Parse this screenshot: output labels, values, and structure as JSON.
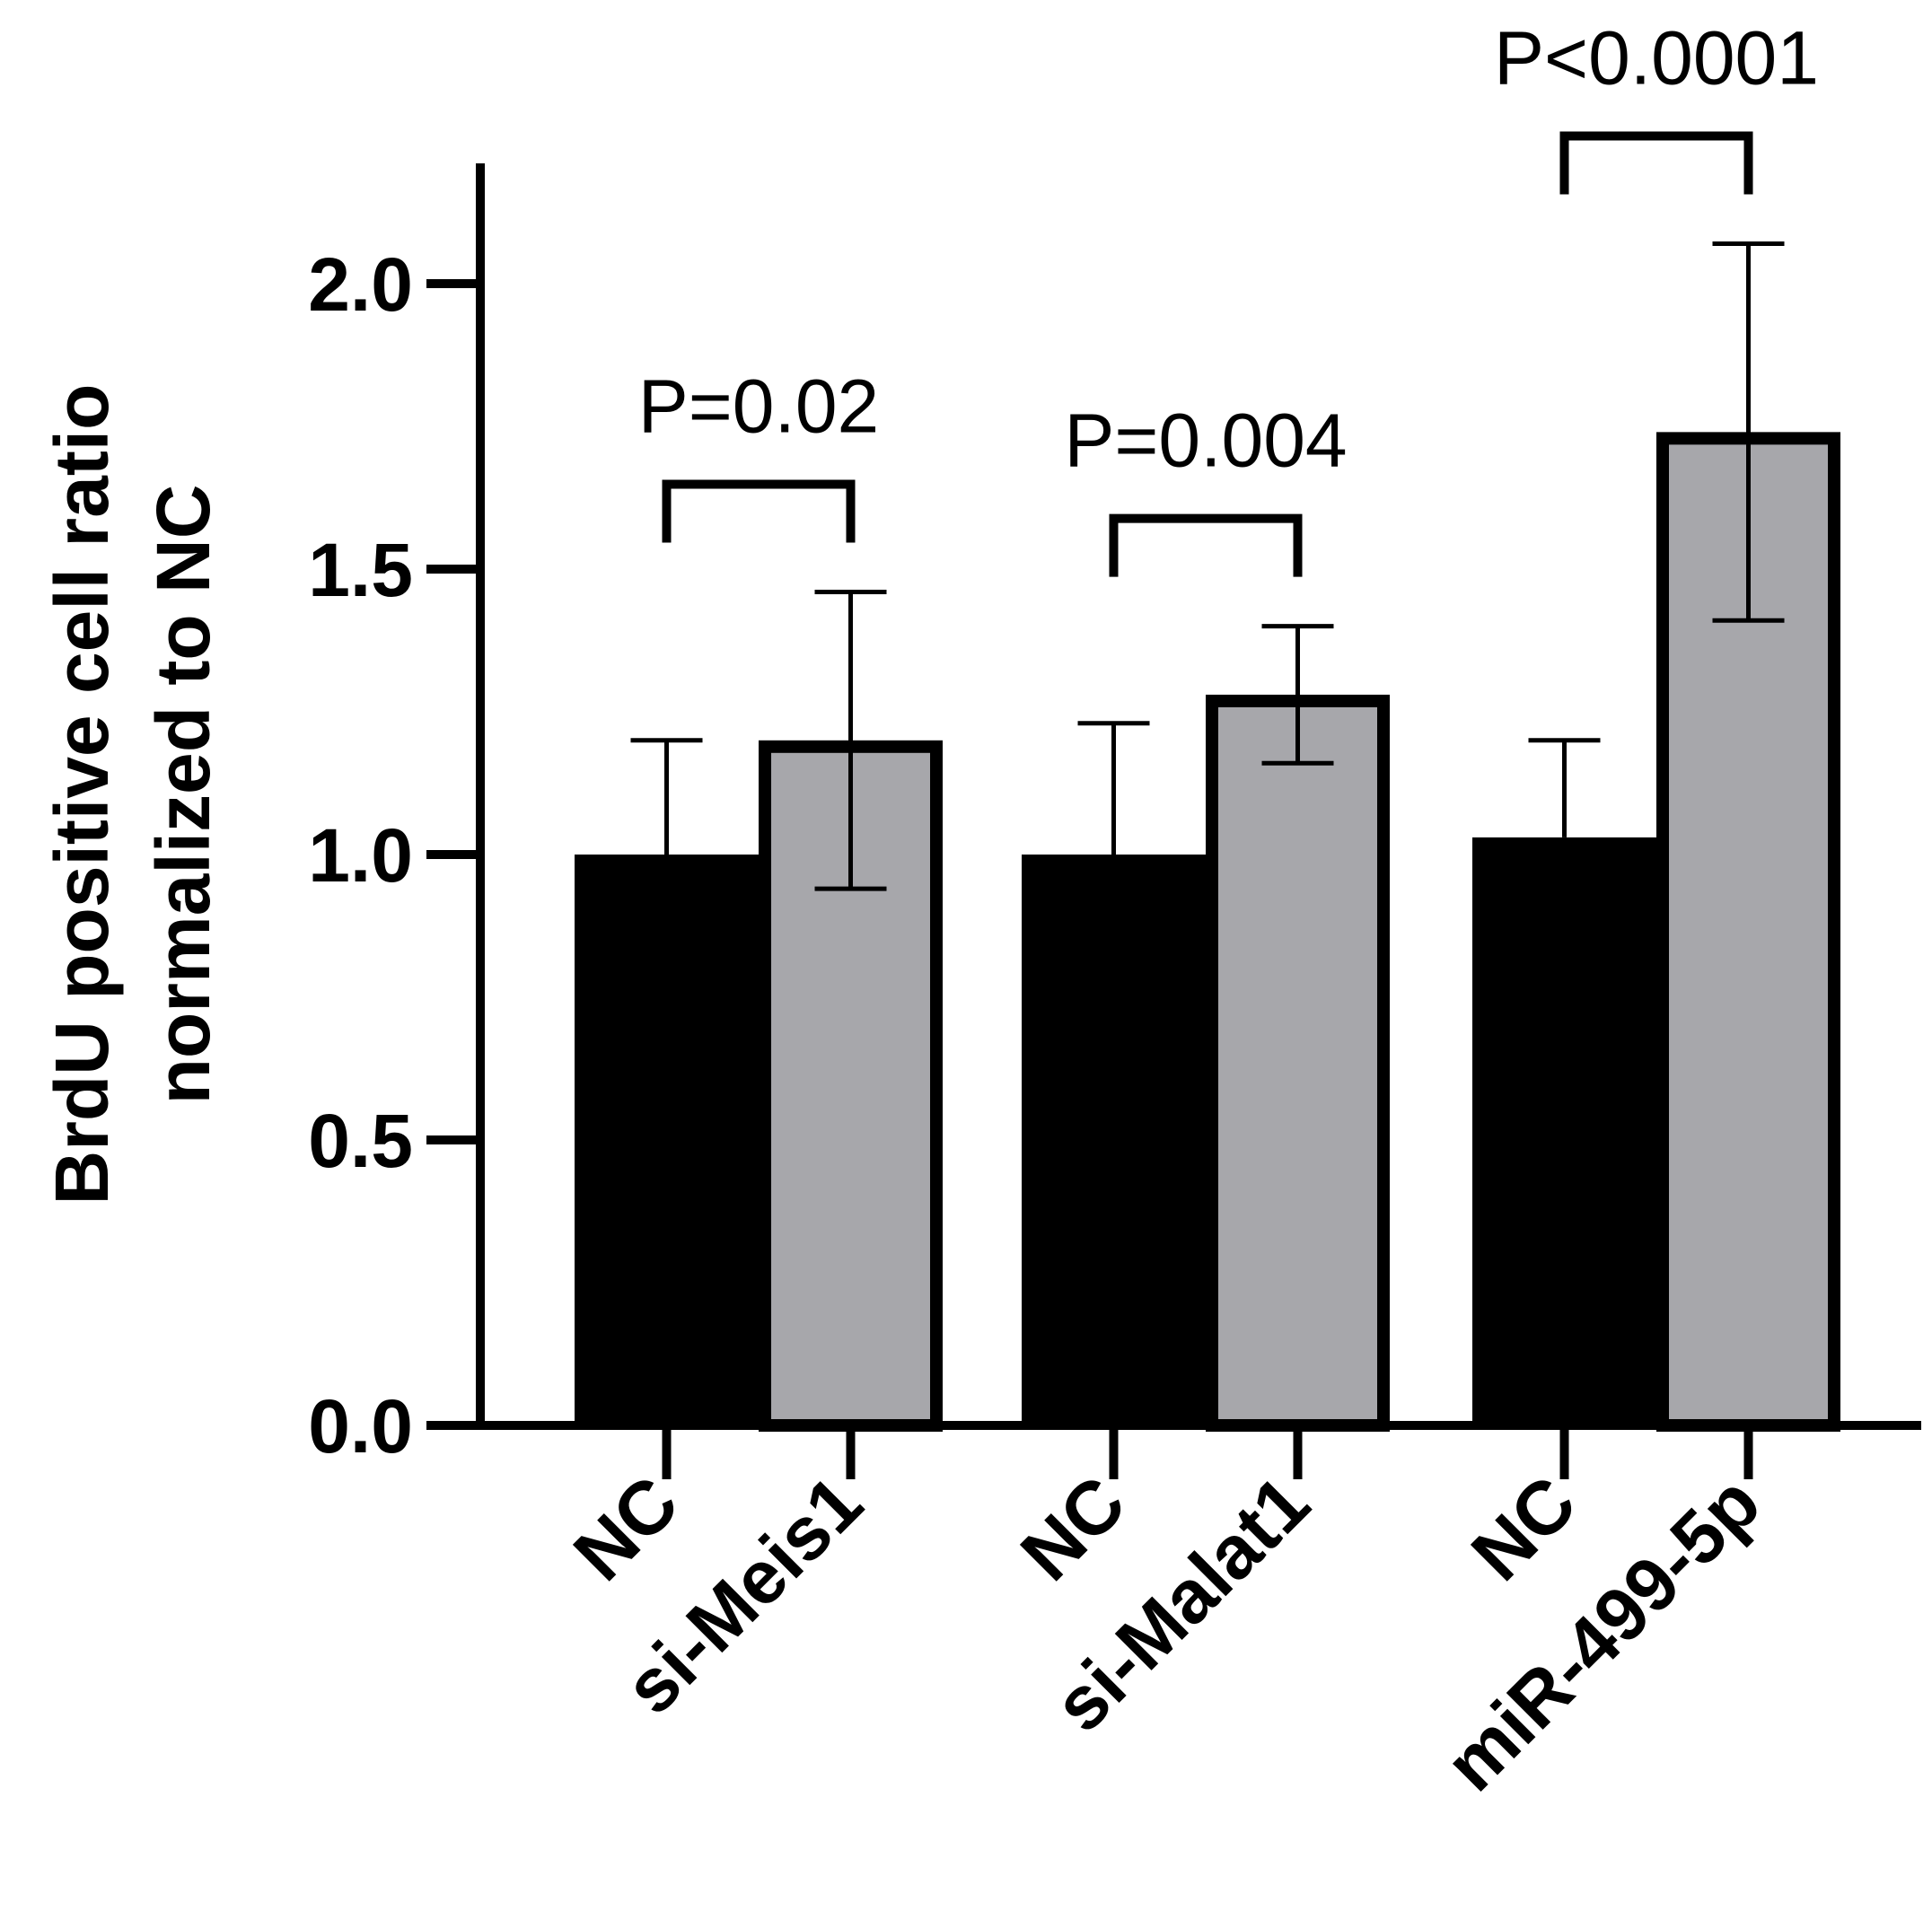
{
  "chart_data": {
    "type": "bar",
    "title": "",
    "ylabel_lines": [
      "BrdU positive cell ratio",
      "normalized to NC"
    ],
    "xlabel": "",
    "ylim": [
      0,
      2.0
    ],
    "yticks": [
      "0.0",
      "0.5",
      "1.0",
      "1.5",
      "2.0"
    ],
    "ytick_values": [
      0,
      0.5,
      1.0,
      1.5,
      2.0
    ],
    "grid": false,
    "legend": "none",
    "categories": [
      "NC",
      "si-Meis1",
      "NC",
      "si-Malat1",
      "NC",
      "miR-499-5p"
    ],
    "values": [
      1.0,
      1.2,
      1.0,
      1.28,
      1.03,
      1.74
    ],
    "errors": [
      0.2,
      0.26,
      0.23,
      0.12,
      0.17,
      0.33
    ],
    "error_style": "upper-only on black bars, both directions on gray bars",
    "bar_colors": [
      "#000000",
      "#a7a7ab",
      "#000000",
      "#a7a7ab",
      "#000000",
      "#a7a7ab"
    ],
    "annotations": [
      {
        "pair": [
          0,
          1
        ],
        "text": "P=0.02"
      },
      {
        "pair": [
          2,
          3
        ],
        "text": "P=0.004"
      },
      {
        "pair": [
          4,
          5
        ],
        "text": "P<0.0001"
      }
    ]
  }
}
